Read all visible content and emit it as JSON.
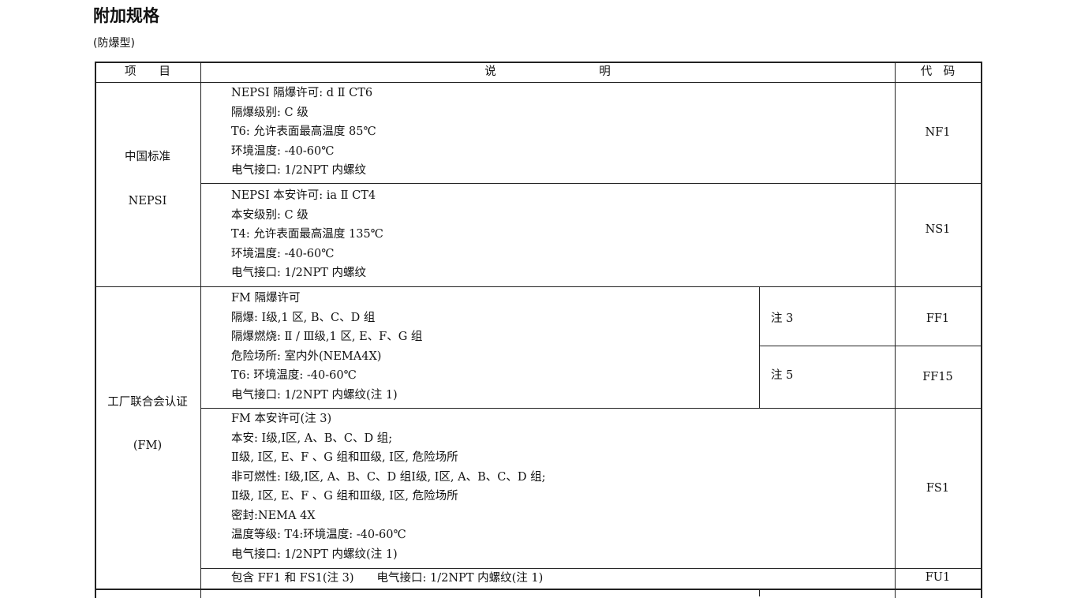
{
  "title": "附加规格",
  "subtitle": "(防爆型)",
  "table": {
    "headers": [
      "项　　目",
      "说　　　　　　　　　明",
      "代　码"
    ],
    "groups": [
      {
        "item": [
          "中国标准",
          "NEPSI"
        ]
      },
      {
        "item": [
          "工厂联合会认证",
          "(FM)"
        ]
      }
    ],
    "rows": [
      {
        "lines": [
          "NEPSI 隔爆许可:  d Ⅱ CT6",
          "隔爆级别:  C 级",
          "T6:  允许表面最高温度 85℃",
          "环境温度:  -40-60℃",
          "电气接口:  1/2NPT 内螺纹"
        ],
        "code": "NF1"
      },
      {
        "lines": [
          "NEPSI 本安许可:  ia Ⅱ CT4",
          "本安级别:  C 级",
          "T4:  允许表面最高温度 135℃",
          "环境温度:  -40-60℃",
          "电气接口:  1/2NPT 内螺纹"
        ],
        "code": "NS1"
      },
      {
        "lines": [
          "FM 隔爆许可",
          "隔爆:  Ⅰ级,1 区,  B、C、D 组",
          "隔爆燃烧:  Ⅱ / Ⅲ级,1 区,  E、F、G 组",
          "危险场所:  室内外(NEMA4X)",
          "T6:  环境温度:  -40-60℃",
          "电气接口:  1/2NPT 内螺纹(注 1)"
        ],
        "notes": [
          "注 3",
          "注 5"
        ],
        "codes": [
          "FF1",
          "FF15"
        ]
      },
      {
        "lines": [
          "FM 本安许可(注 3)",
          "本安:  Ⅰ级,Ⅰ区,  A、B、C、D 组;",
          "      Ⅱ级,  Ⅰ区,  E、F 、G 组和Ⅲ级,  Ⅰ区,  危险场所",
          "非可燃性:  Ⅰ级,Ⅰ区,  A、B、C、D 组Ⅰ级,  Ⅰ区,  A、B、C、D 组;",
          "         Ⅱ级,  Ⅰ区,  E、F 、G 组和Ⅲ级,  Ⅰ区,  危险场所",
          "密封:NEMA  4X",
          "温度等级:  T4:环境温度:  -40-60℃",
          "电气接口:  1/2NPT 内螺纹(注 1)"
        ],
        "code": "FS1"
      },
      {
        "lines": [
          "包含 FF1 和 FS1(注 3)　　电气接口:  1/2NPT 内螺纹(注 1)"
        ],
        "code": "FU1"
      }
    ]
  }
}
